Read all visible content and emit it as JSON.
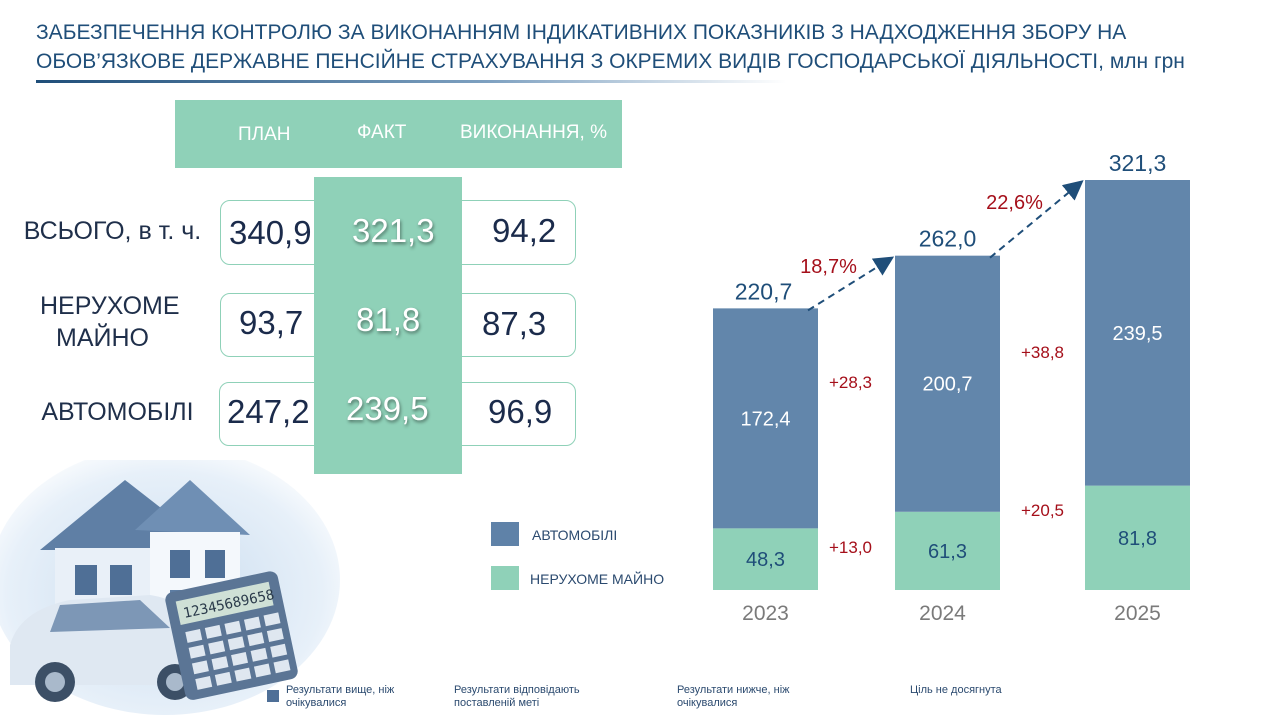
{
  "title": "ЗАБЕЗПЕЧЕННЯ КОНТРОЛЮ ЗА ВИКОНАННЯМ ІНДИКАТИВНИХ ПОКАЗНИКІВ З НАДХОДЖЕННЯ ЗБОРУ НА ОБОВ’ЯЗКОВЕ ДЕРЖАВНЕ ПЕНСІЙНЕ СТРАХУВАННЯ З ОКРЕМИХ ВИДІВ ГОСПОДАРСЬКОЇ ДІЯЛЬНОСТІ,",
  "title_unit": "млн грн",
  "table": {
    "headers": {
      "plan": "ПЛАН",
      "fact": "ФАКТ",
      "pct": "ВИКОНАННЯ, %"
    },
    "rows": [
      {
        "label": "ВСЬОГО, в т. ч.",
        "plan": "340,9",
        "fact": "321,3",
        "pct": "94,2"
      },
      {
        "label": "НЕРУХОМЕ МАЙНО",
        "plan": "93,7",
        "fact": "81,8",
        "pct": "87,3"
      },
      {
        "label": "АВТОМОБІЛІ",
        "plan": "247,2",
        "fact": "239,5",
        "pct": "96,9"
      }
    ]
  },
  "legend": {
    "auto": "АВТОМОБІЛІ",
    "realty": "НЕРУХОМЕ МАЙНО"
  },
  "footer": {
    "above": "Результати вище, ніж очікувалися",
    "match": "Результати відповідають поставленій меті",
    "below": "Результати нижче, ніж очікувалися",
    "missed": "Ціль не досягнута"
  },
  "colors": {
    "auto": "#6286ab",
    "realty": "#8fd1b8",
    "delta": "#a50f1a",
    "accent": "#1f4e79"
  },
  "chart_data": {
    "type": "bar",
    "stacked": true,
    "categories": [
      "2023",
      "2024",
      "2025"
    ],
    "series": [
      {
        "name": "НЕРУХОМЕ МАЙНО",
        "values": [
          48.3,
          61.3,
          81.8
        ],
        "labels": [
          "48,3",
          "61,3",
          "81,8"
        ]
      },
      {
        "name": "АВТОМОБІЛІ",
        "values": [
          172.4,
          200.7,
          239.5
        ],
        "labels": [
          "172,4",
          "200,7",
          "239,5"
        ]
      }
    ],
    "totals": [
      220.7,
      262.0,
      321.3
    ],
    "total_labels": [
      "220,7",
      "262,0",
      "321,3"
    ],
    "growth_labels": [
      "18,7%",
      "22,6%"
    ],
    "delta_realty": [
      "+13,0",
      "+20,5"
    ],
    "delta_auto": [
      "+28,3",
      "+38,8"
    ]
  }
}
